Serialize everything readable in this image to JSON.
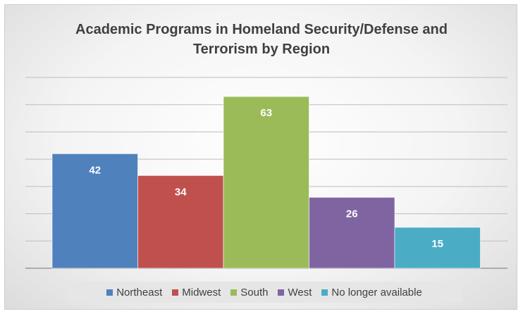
{
  "chart_data": {
    "type": "bar",
    "title_lines": [
      "Academic Programs in Homeland Security/Defense and",
      "Terrorism by Region"
    ],
    "categories": [
      "Northeast",
      "Midwest",
      "South",
      "West",
      "No longer available"
    ],
    "values": [
      42,
      34,
      63,
      26,
      15
    ],
    "colors": [
      "#4f81bd",
      "#c0504d",
      "#9bbb59",
      "#8064a2",
      "#4bacc6"
    ],
    "ylim": [
      0,
      70
    ],
    "gridlines": [
      10,
      20,
      30,
      40,
      50,
      60,
      70
    ],
    "legend_position": "bottom",
    "data_labels": true,
    "grid": true,
    "xlabel": "",
    "ylabel": ""
  }
}
